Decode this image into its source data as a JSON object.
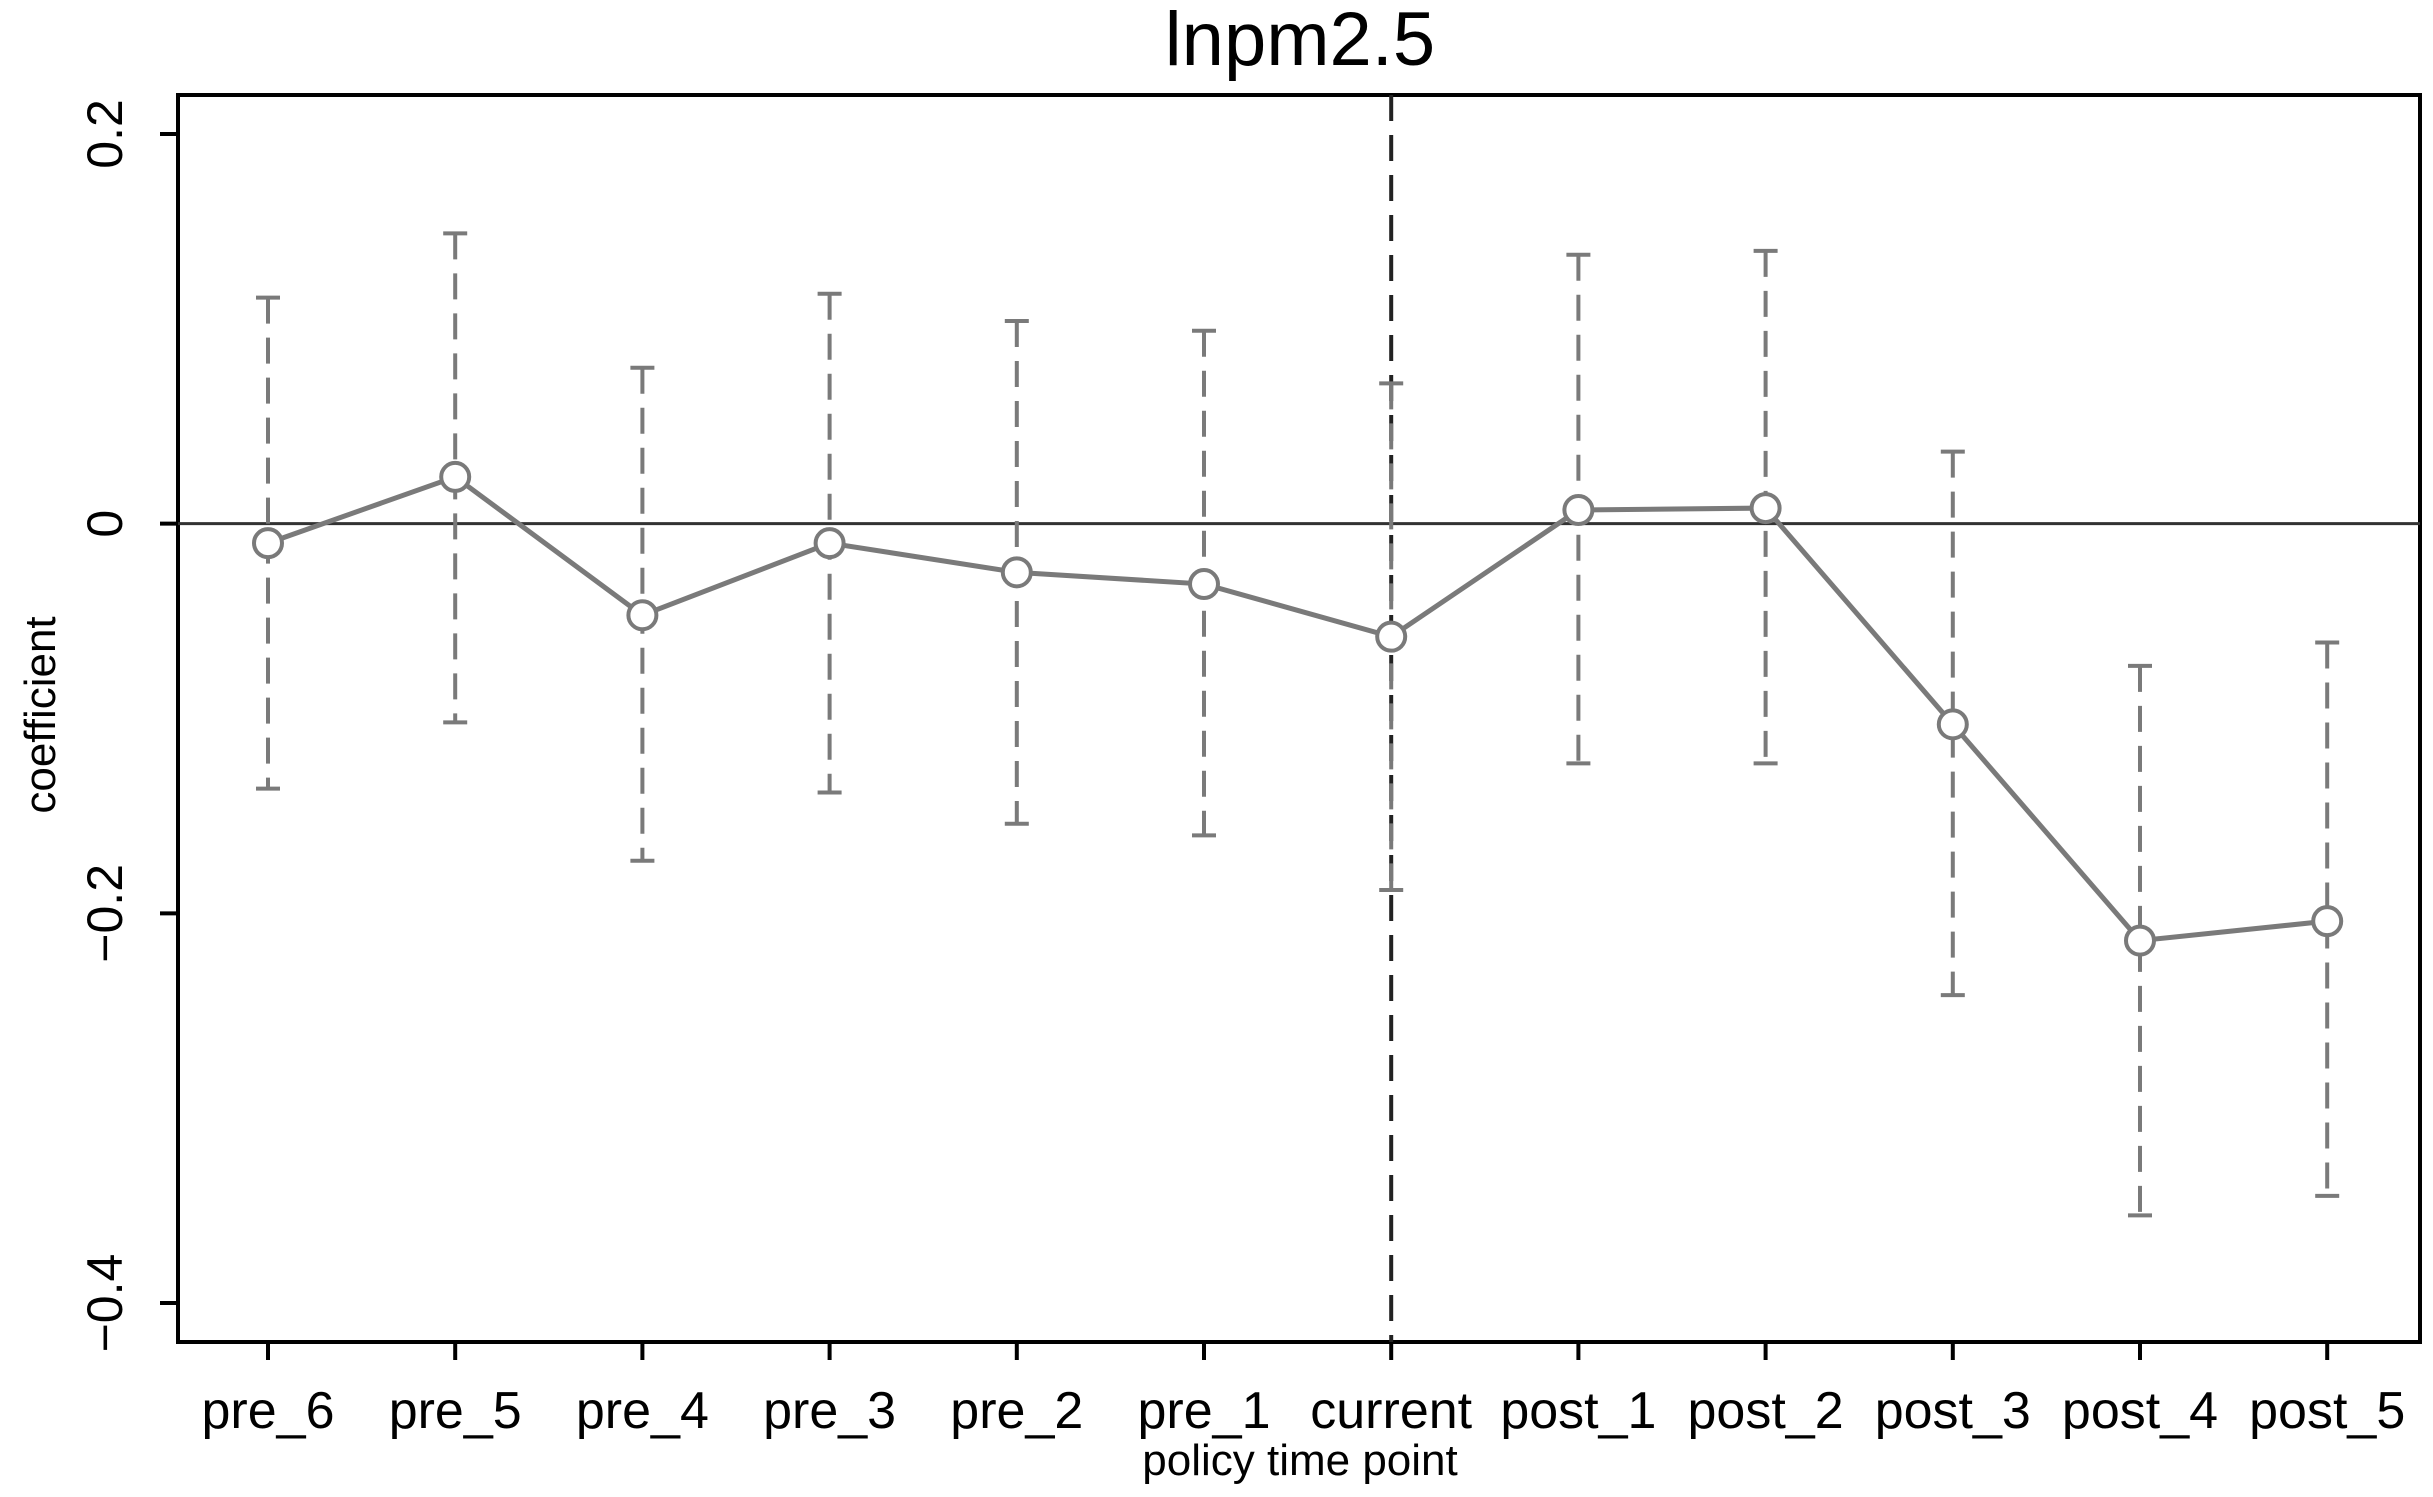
{
  "chart_data": {
    "type": "line",
    "title": "lnpm2.5",
    "xlabel": "policy time point",
    "ylabel": "coefficient",
    "categories": [
      "pre_6",
      "pre_5",
      "pre_4",
      "pre_3",
      "pre_2",
      "pre_1",
      "current",
      "post_1",
      "post_2",
      "post_3",
      "post_4",
      "post_5"
    ],
    "series": [
      {
        "values": [
          -0.01,
          0.024,
          -0.047,
          -0.01,
          -0.025,
          -0.031,
          -0.058,
          0.007,
          0.008,
          -0.103,
          -0.214,
          -0.204
        ],
        "ci_lower": [
          -0.136,
          -0.102,
          -0.173,
          -0.138,
          -0.154,
          -0.16,
          -0.188,
          -0.123,
          -0.123,
          -0.242,
          -0.355,
          -0.345
        ],
        "ci_upper": [
          0.116,
          0.149,
          0.08,
          0.118,
          0.104,
          0.099,
          0.072,
          0.138,
          0.14,
          0.037,
          -0.073,
          -0.061
        ]
      }
    ],
    "ylim": [
      -0.42,
      0.22
    ],
    "yticks": [
      -0.4,
      -0.2,
      0,
      0.2
    ],
    "ytick_labels": [
      "−0.4",
      "−0.2",
      "0",
      "0.2"
    ],
    "reference_lines": {
      "horizontal": 0,
      "vertical_category": "current"
    },
    "grid": false,
    "legend": "none",
    "colors": {
      "series": "#7a7a7a",
      "axes": "#000000",
      "zero_line": "#333333",
      "vertical_line": "#222222"
    }
  }
}
